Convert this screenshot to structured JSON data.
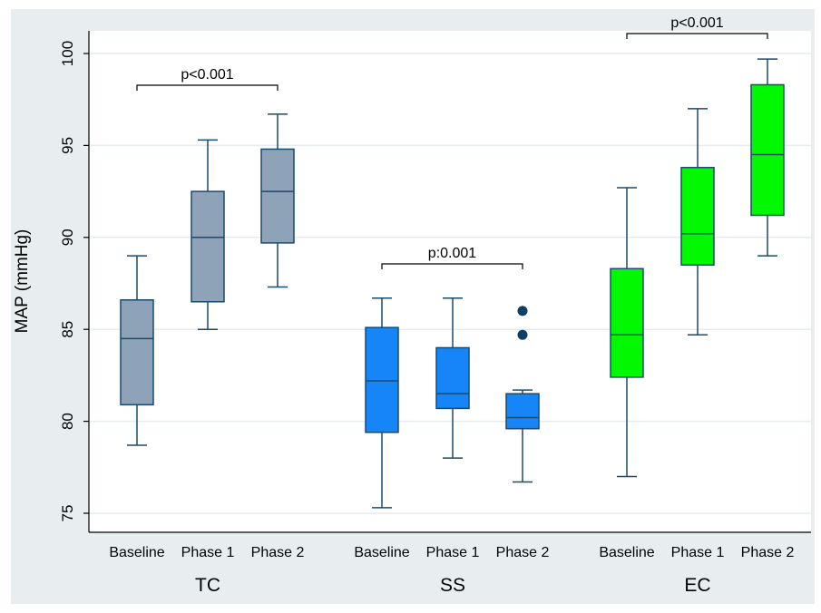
{
  "chart_data": {
    "type": "box",
    "ylabel": "MAP (mmHg)",
    "xlabel": "",
    "ylim": [
      74.2,
      101.3
    ],
    "yticks": [
      75,
      80,
      85,
      90,
      95,
      100
    ],
    "grid": true,
    "colors": {
      "frame_background": "#e8eef0",
      "plot_background": "#ffffff",
      "gridline": "#e6ecee",
      "box_outline": "#1a4a6e",
      "outlier": "#0b3f66",
      "TC": "#8ea3b7",
      "SS": "#1585f8",
      "EC": "#00f800"
    },
    "groups": [
      {
        "name": "TC",
        "annotation": "p<0.001",
        "boxes": [
          {
            "label": "Baseline",
            "whisker_low": 78.7,
            "q1": 80.9,
            "median": 84.5,
            "q3": 86.6,
            "whisker_high": 89.0,
            "outliers": []
          },
          {
            "label": "Phase 1",
            "whisker_low": 85.0,
            "q1": 86.5,
            "median": 90.0,
            "q3": 92.5,
            "whisker_high": 95.3,
            "outliers": []
          },
          {
            "label": "Phase 2",
            "whisker_low": 87.3,
            "q1": 89.7,
            "median": 92.5,
            "q3": 94.8,
            "whisker_high": 96.7,
            "outliers": []
          }
        ]
      },
      {
        "name": "SS",
        "annotation": "p:0.001",
        "boxes": [
          {
            "label": "Baseline",
            "whisker_low": 75.3,
            "q1": 79.4,
            "median": 82.2,
            "q3": 85.1,
            "whisker_high": 86.7,
            "outliers": []
          },
          {
            "label": "Phase 1",
            "whisker_low": 78.0,
            "q1": 80.7,
            "median": 81.5,
            "q3": 84.0,
            "whisker_high": 86.7,
            "outliers": []
          },
          {
            "label": "Phase 2",
            "whisker_low": 76.7,
            "q1": 79.6,
            "median": 80.2,
            "q3": 81.5,
            "whisker_high": 81.7,
            "outliers": [
              84.7,
              86.0
            ]
          }
        ]
      },
      {
        "name": "EC",
        "annotation": "p<0.001",
        "boxes": [
          {
            "label": "Baseline",
            "whisker_low": 77.0,
            "q1": 82.4,
            "median": 84.7,
            "q3": 88.3,
            "whisker_high": 92.7,
            "outliers": []
          },
          {
            "label": "Phase 1",
            "whisker_low": 84.7,
            "q1": 88.5,
            "median": 90.2,
            "q3": 93.8,
            "whisker_high": 97.0,
            "outliers": []
          },
          {
            "label": "Phase 2",
            "whisker_low": 89.0,
            "q1": 91.2,
            "median": 94.5,
            "q3": 98.3,
            "whisker_high": 99.7,
            "outliers": []
          }
        ]
      }
    ]
  }
}
